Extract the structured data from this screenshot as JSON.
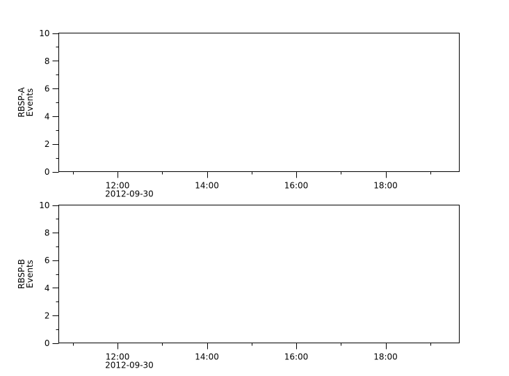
{
  "chart_data": [
    {
      "type": "line",
      "ylabel": [
        "RBSP-A",
        "Events"
      ],
      "ylim": [
        0,
        10
      ],
      "yticks": [
        0,
        2,
        4,
        6,
        8,
        10
      ],
      "xlim": [
        "2012-09-30T10:41",
        "2012-09-30T19:39"
      ],
      "xticks": [
        "12:00",
        "14:00",
        "16:00",
        "18:00"
      ],
      "xtick_date": "2012-09-30",
      "series": [],
      "grid": false
    },
    {
      "type": "line",
      "ylabel": [
        "RBSP-B",
        "Events"
      ],
      "ylim": [
        0,
        10
      ],
      "yticks": [
        0,
        2,
        4,
        6,
        8,
        10
      ],
      "xlim": [
        "2012-09-30T10:41",
        "2012-09-30T19:39"
      ],
      "xticks": [
        "12:00",
        "14:00",
        "16:00",
        "18:00"
      ],
      "xtick_date": "2012-09-30",
      "series": [],
      "grid": false
    }
  ]
}
